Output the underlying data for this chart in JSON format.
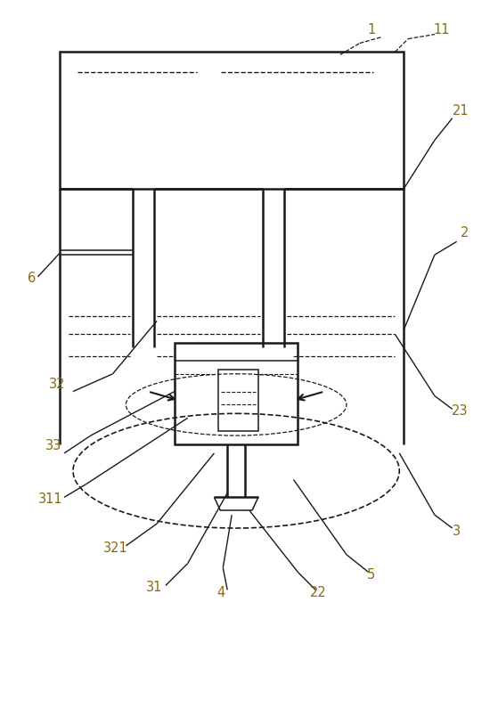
{
  "fig_width": 5.59,
  "fig_height": 7.95,
  "dpi": 100,
  "bg_color": "#ffffff",
  "line_color": "#1a1a1a",
  "label_color": "#8B6914",
  "label_fontsize": 10.5
}
